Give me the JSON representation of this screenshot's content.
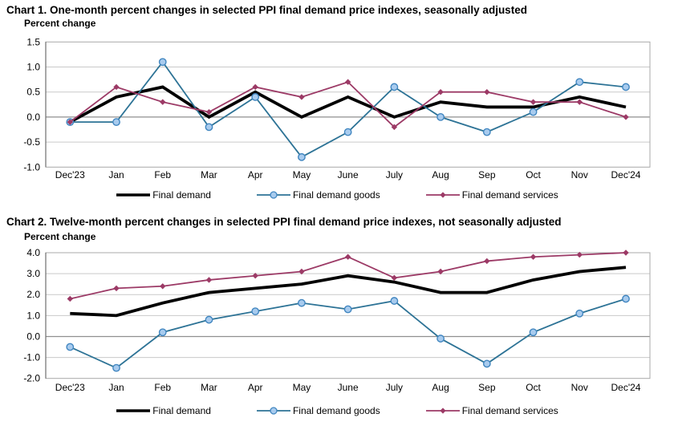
{
  "chart_data": [
    {
      "type": "line",
      "title": "Chart 1. One-month percent changes in selected PPI final demand price indexes, seasonally adjusted",
      "ylabel": "Percent change",
      "categories": [
        "Dec'23",
        "Jan",
        "Feb",
        "Mar",
        "Apr",
        "May",
        "June",
        "July",
        "Aug",
        "Sep",
        "Oct",
        "Nov",
        "Dec'24"
      ],
      "series": [
        {
          "name": "Final demand",
          "values": [
            -0.1,
            0.4,
            0.6,
            0.0,
            0.5,
            0.0,
            0.4,
            0.0,
            0.3,
            0.2,
            0.2,
            0.4,
            0.2
          ]
        },
        {
          "name": "Final demand goods",
          "values": [
            -0.1,
            -0.1,
            1.1,
            -0.2,
            0.4,
            -0.8,
            -0.3,
            0.6,
            0.0,
            -0.3,
            0.1,
            0.7,
            0.6
          ]
        },
        {
          "name": "Final demand services",
          "values": [
            -0.1,
            0.6,
            0.3,
            0.1,
            0.6,
            0.4,
            0.7,
            -0.2,
            0.5,
            0.5,
            0.3,
            0.3,
            0.0
          ]
        }
      ],
      "ylim": [
        -1.0,
        1.5
      ],
      "ytick_step": 0.5,
      "grid": true,
      "legend_position": "bottom"
    },
    {
      "type": "line",
      "title": "Chart 2. Twelve-month percent changes in selected PPI final demand price indexes, not seasonally adjusted",
      "ylabel": "Percent change",
      "categories": [
        "Dec'23",
        "Jan",
        "Feb",
        "Mar",
        "Apr",
        "May",
        "June",
        "July",
        "Aug",
        "Sep",
        "Oct",
        "Nov",
        "Dec'24"
      ],
      "series": [
        {
          "name": "Final demand",
          "values": [
            1.1,
            1.0,
            1.6,
            2.1,
            2.3,
            2.5,
            2.9,
            2.6,
            2.1,
            2.1,
            2.7,
            3.1,
            3.3
          ]
        },
        {
          "name": "Final demand goods",
          "values": [
            -0.5,
            -1.5,
            0.2,
            0.8,
            1.2,
            1.6,
            1.3,
            1.7,
            -0.1,
            -1.3,
            0.2,
            1.1,
            1.8
          ]
        },
        {
          "name": "Final demand services",
          "values": [
            1.8,
            2.3,
            2.4,
            2.7,
            2.9,
            3.1,
            3.8,
            2.8,
            3.1,
            3.6,
            3.8,
            3.9,
            4.0
          ]
        }
      ],
      "ylim": [
        -2.0,
        4.0
      ],
      "ytick_step": 1.0,
      "grid": true,
      "legend_position": "bottom"
    }
  ],
  "colors": {
    "final_demand": "#000000",
    "goods_line": "#2d7396",
    "goods_marker_fill": "#a8cbee",
    "goods_marker_stroke": "#4186c0",
    "services": "#9c3a66",
    "gridline": "#c9c9c9",
    "zero_line": "#8f8f8f",
    "plot_border": "#a8a8a8",
    "axis_line": "#6e6e6e",
    "text": "#000000",
    "background": "#ffffff"
  }
}
